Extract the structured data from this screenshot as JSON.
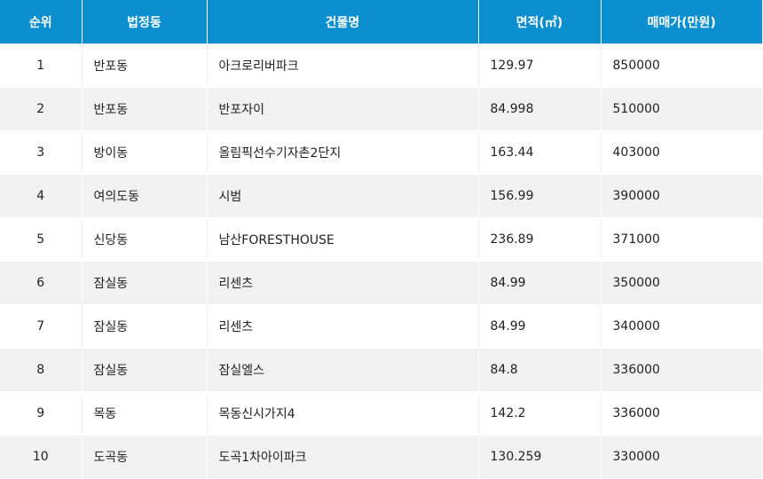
{
  "table": {
    "headers": [
      "순위",
      "법정동",
      "건물명",
      "면적(㎡)",
      "매매가(만원)"
    ],
    "rows": [
      {
        "rank": "1",
        "dong": "반포동",
        "building": "아크로리버파크",
        "area": "129.97",
        "price": "850000"
      },
      {
        "rank": "2",
        "dong": "반포동",
        "building": "반포자이",
        "area": "84.998",
        "price": "510000"
      },
      {
        "rank": "3",
        "dong": "방이동",
        "building": "올림픽선수기자촌2단지",
        "area": "163.44",
        "price": "403000"
      },
      {
        "rank": "4",
        "dong": "여의도동",
        "building": "시범",
        "area": "156.99",
        "price": "390000"
      },
      {
        "rank": "5",
        "dong": "신당동",
        "building": "남산FORESTHOUSE",
        "area": "236.89",
        "price": "371000"
      },
      {
        "rank": "6",
        "dong": "잠실동",
        "building": "리센츠",
        "area": "84.99",
        "price": "350000"
      },
      {
        "rank": "7",
        "dong": "잠실동",
        "building": "리센츠",
        "area": "84.99",
        "price": "340000"
      },
      {
        "rank": "8",
        "dong": "잠실동",
        "building": "잠실엘스",
        "area": "84.8",
        "price": "336000"
      },
      {
        "rank": "9",
        "dong": "목동",
        "building": "목동신시가지4",
        "area": "142.2",
        "price": "336000"
      },
      {
        "rank": "10",
        "dong": "도곡동",
        "building": "도곡1차아이파크",
        "area": "130.259",
        "price": "330000"
      }
    ]
  },
  "colors": {
    "header_bg": "#0C8FCF",
    "header_text": "#FFFFFF",
    "row_alt_bg": "#F1F1F1",
    "row_bg": "#FFFFFF",
    "text": "#222222"
  }
}
